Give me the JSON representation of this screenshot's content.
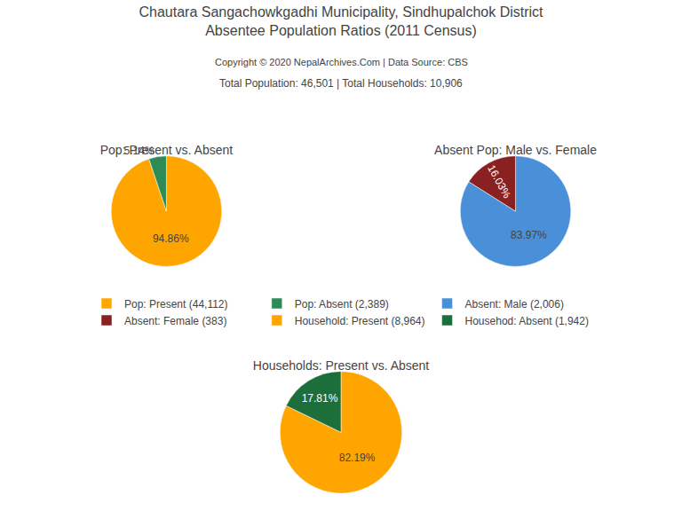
{
  "title": "Chautara Sangachowkgadhi Municipality, Sindhupalchok District\nAbsentee Population Ratios (2011 Census)",
  "subtitle": "Copyright © 2020 NepalArchives.Com | Data Source: CBS",
  "annotations": [
    "Total Population: 46,501 | Total Households: 10,906"
  ],
  "legend": "center",
  "chart_data": [
    {
      "type": "pie",
      "title": "Pop: Present vs. Absent",
      "categories": [
        "Pop: Present (44,112)",
        "Pop: Absent (2,389)"
      ],
      "values": [
        94.86,
        5.14
      ],
      "value_labels": [
        "94.86%",
        "5.14%"
      ],
      "colors": [
        "#FFA500",
        "#2E8B57"
      ],
      "data_labels": true
    },
    {
      "type": "pie",
      "title": "Absent Pop: Male vs. Female",
      "categories": [
        "Absent: Male (2,006)",
        "Absent: Female (383)"
      ],
      "values": [
        83.97,
        16.03
      ],
      "value_labels": [
        "83.97%",
        "16.03%"
      ],
      "colors": [
        "#4A90D9",
        "#8B2020"
      ],
      "data_labels": true
    },
    {
      "type": "pie",
      "title": "Households: Present vs. Absent",
      "categories": [
        "Household: Present (8,964)",
        "Househod: Absent (1,942)"
      ],
      "values": [
        82.19,
        17.81
      ],
      "value_labels": [
        "82.19%",
        "17.81%"
      ],
      "colors": [
        "#FFA500",
        "#1C6E3A"
      ],
      "data_labels": true
    }
  ]
}
